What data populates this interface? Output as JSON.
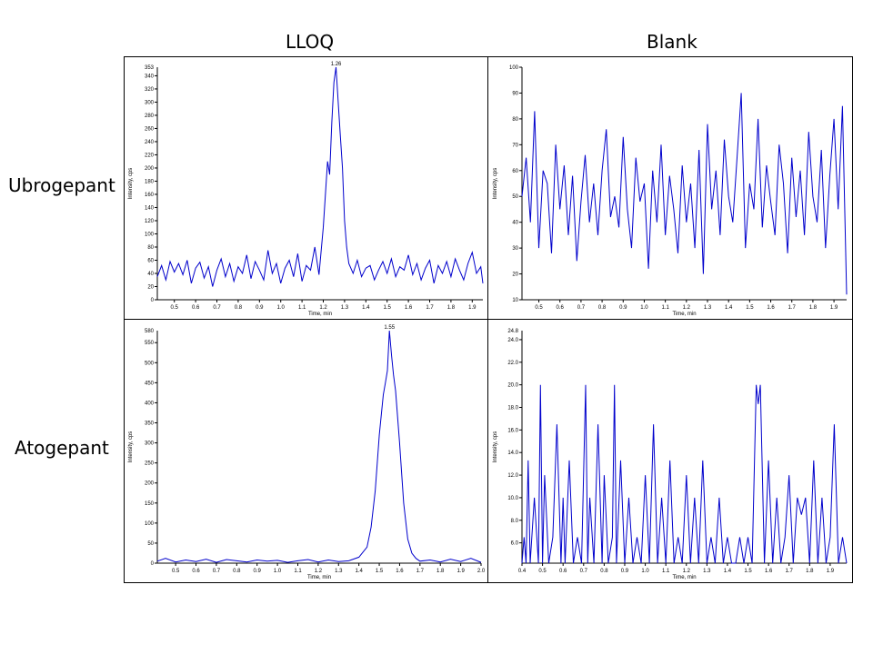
{
  "column_titles": [
    "LLOQ",
    "Blank"
  ],
  "row_titles": [
    "Ubrogepant",
    "Atogepant"
  ],
  "colors": {
    "trace": "#0000cc",
    "axis": "#000000",
    "frame": "#000000"
  },
  "chart_data": [
    {
      "type": "line",
      "panel": "Ubrogepant LLOQ",
      "xlabel": "Time, min",
      "ylabel": "Intensity, cps",
      "xlim": [
        0.42,
        1.95
      ],
      "ylim": [
        0,
        353
      ],
      "x_ticks": [
        "0.5",
        "0.6",
        "0.7",
        "0.8",
        "0.9",
        "1.0",
        "1.1",
        "1.2",
        "1.3",
        "1.4",
        "1.5",
        "1.6",
        "1.7",
        "1.8",
        "1.9"
      ],
      "y_ticks": [
        "0",
        "20",
        "40",
        "60",
        "80",
        "100",
        "120",
        "140",
        "160",
        "180",
        "200",
        "220",
        "240",
        "260",
        "280",
        "300",
        "320",
        "340"
      ],
      "y_top_label": "353",
      "peak": {
        "x": 1.26,
        "y": 353,
        "label": "1.26"
      },
      "series": [
        {
          "x": [
            0.42,
            0.44,
            0.46,
            0.48,
            0.5,
            0.52,
            0.54,
            0.56,
            0.58,
            0.6,
            0.62,
            0.64,
            0.66,
            0.68,
            0.7,
            0.72,
            0.74,
            0.76,
            0.78,
            0.8,
            0.82,
            0.84,
            0.86,
            0.88,
            0.9,
            0.92,
            0.94,
            0.96,
            0.98,
            1.0,
            1.02,
            1.04,
            1.06,
            1.08,
            1.1,
            1.12,
            1.14,
            1.16,
            1.18,
            1.2,
            1.22,
            1.23,
            1.24,
            1.25,
            1.26,
            1.27,
            1.28,
            1.29,
            1.3,
            1.31,
            1.32,
            1.34,
            1.36,
            1.38,
            1.4,
            1.42,
            1.44,
            1.46,
            1.48,
            1.5,
            1.52,
            1.54,
            1.56,
            1.58,
            1.6,
            1.62,
            1.64,
            1.66,
            1.68,
            1.7,
            1.72,
            1.74,
            1.76,
            1.78,
            1.8,
            1.82,
            1.84,
            1.86,
            1.88,
            1.9,
            1.92,
            1.94,
            1.95
          ],
          "y": [
            35,
            52,
            30,
            58,
            42,
            55,
            38,
            60,
            25,
            48,
            57,
            33,
            50,
            20,
            45,
            62,
            35,
            55,
            28,
            50,
            40,
            68,
            32,
            58,
            45,
            30,
            75,
            40,
            55,
            25,
            48,
            60,
            35,
            70,
            28,
            52,
            45,
            80,
            38,
            110,
            210,
            190,
            270,
            330,
            353,
            300,
            250,
            200,
            120,
            80,
            55,
            40,
            60,
            35,
            48,
            52,
            30,
            45,
            58,
            40,
            62,
            35,
            50,
            45,
            68,
            38,
            55,
            30,
            48,
            60,
            25,
            52,
            40,
            58,
            35,
            62,
            45,
            30,
            55,
            72,
            40,
            50,
            25
          ]
        }
      ]
    },
    {
      "type": "line",
      "panel": "Ubrogepant Blank",
      "xlabel": "Time, min",
      "ylabel": "Intensity, cps",
      "xlim": [
        0.42,
        1.96
      ],
      "ylim": [
        10,
        100
      ],
      "x_ticks": [
        "0.5",
        "0.6",
        "0.7",
        "0.8",
        "0.9",
        "1.0",
        "1.1",
        "1.2",
        "1.3",
        "1.4",
        "1.5",
        "1.6",
        "1.7",
        "1.8",
        "1.9"
      ],
      "y_ticks": [
        "10",
        "20",
        "30",
        "40",
        "50",
        "60",
        "70",
        "80",
        "90",
        "100"
      ],
      "series": [
        {
          "x": [
            0.42,
            0.44,
            0.46,
            0.48,
            0.5,
            0.52,
            0.54,
            0.56,
            0.58,
            0.6,
            0.62,
            0.64,
            0.66,
            0.68,
            0.7,
            0.72,
            0.74,
            0.76,
            0.78,
            0.8,
            0.82,
            0.84,
            0.86,
            0.88,
            0.9,
            0.92,
            0.94,
            0.96,
            0.98,
            1.0,
            1.02,
            1.04,
            1.06,
            1.08,
            1.1,
            1.12,
            1.14,
            1.16,
            1.18,
            1.2,
            1.22,
            1.24,
            1.26,
            1.28,
            1.3,
            1.32,
            1.34,
            1.36,
            1.38,
            1.4,
            1.42,
            1.44,
            1.46,
            1.48,
            1.5,
            1.52,
            1.54,
            1.56,
            1.58,
            1.6,
            1.62,
            1.64,
            1.66,
            1.68,
            1.7,
            1.72,
            1.74,
            1.76,
            1.78,
            1.8,
            1.82,
            1.84,
            1.86,
            1.88,
            1.9,
            1.92,
            1.94,
            1.96
          ],
          "y": [
            50,
            65,
            40,
            83,
            30,
            60,
            55,
            28,
            70,
            45,
            62,
            35,
            58,
            25,
            48,
            66,
            40,
            55,
            35,
            60,
            76,
            42,
            50,
            38,
            73,
            45,
            30,
            65,
            48,
            55,
            22,
            60,
            40,
            70,
            35,
            58,
            45,
            28,
            62,
            40,
            55,
            30,
            68,
            20,
            78,
            45,
            60,
            35,
            72,
            50,
            40,
            65,
            90,
            30,
            55,
            45,
            80,
            38,
            62,
            48,
            35,
            70,
            55,
            28,
            65,
            42,
            60,
            35,
            75,
            50,
            40,
            68,
            30,
            58,
            80,
            45,
            85,
            12
          ]
        }
      ]
    },
    {
      "type": "line",
      "panel": "Atogepant LLOQ",
      "xlabel": "Time, min",
      "ylabel": "Intensity, cps",
      "xlim": [
        0.41,
        2.0
      ],
      "ylim": [
        0,
        580
      ],
      "x_ticks": [
        "0.5",
        "0.6",
        "0.7",
        "0.8",
        "0.9",
        "1.0",
        "1.1",
        "1.2",
        "1.3",
        "1.4",
        "1.5",
        "1.6",
        "1.7",
        "1.8",
        "1.9",
        "2.0"
      ],
      "y_ticks": [
        "0",
        "50",
        "100",
        "150",
        "200",
        "250",
        "300",
        "350",
        "400",
        "450",
        "500",
        "550"
      ],
      "y_top_label": "580",
      "peak": {
        "x": 1.55,
        "y": 580,
        "label": "1.55"
      },
      "series": [
        {
          "x": [
            0.41,
            0.45,
            0.5,
            0.55,
            0.6,
            0.65,
            0.7,
            0.75,
            0.8,
            0.85,
            0.9,
            0.95,
            1.0,
            1.05,
            1.1,
            1.15,
            1.2,
            1.25,
            1.3,
            1.35,
            1.4,
            1.44,
            1.46,
            1.48,
            1.5,
            1.52,
            1.53,
            1.54,
            1.55,
            1.56,
            1.57,
            1.58,
            1.6,
            1.62,
            1.64,
            1.66,
            1.68,
            1.7,
            1.75,
            1.8,
            1.85,
            1.9,
            1.95,
            2.0
          ],
          "y": [
            5,
            12,
            3,
            8,
            4,
            10,
            2,
            9,
            6,
            3,
            8,
            5,
            7,
            2,
            6,
            9,
            3,
            8,
            4,
            6,
            15,
            40,
            90,
            180,
            320,
            420,
            450,
            480,
            580,
            520,
            470,
            430,
            300,
            150,
            60,
            25,
            12,
            5,
            8,
            3,
            10,
            4,
            12,
            2
          ]
        }
      ]
    },
    {
      "type": "line",
      "panel": "Atogepant Blank",
      "xlabel": "Time, min",
      "ylabel": "Intensity, cps",
      "xlim": [
        0.4,
        1.98
      ],
      "ylim": [
        4.2,
        24.8
      ],
      "x_ticks": [
        "0.4",
        "0.5",
        "0.6",
        "0.7",
        "0.8",
        "0.9",
        "1.0",
        "1.1",
        "1.2",
        "1.3",
        "1.4",
        "1.5",
        "1.6",
        "1.7",
        "1.8",
        "1.9"
      ],
      "y_ticks": [
        "6.0",
        "8.0",
        "10.0",
        "12.0",
        "14.0",
        "16.0",
        "18.0",
        "20.0",
        "22.0",
        "24.0"
      ],
      "y_top_label": "24.8",
      "series": [
        {
          "x": [
            0.4,
            0.41,
            0.42,
            0.43,
            0.44,
            0.46,
            0.48,
            0.49,
            0.5,
            0.51,
            0.53,
            0.55,
            0.57,
            0.59,
            0.6,
            0.61,
            0.63,
            0.65,
            0.67,
            0.69,
            0.71,
            0.72,
            0.73,
            0.75,
            0.77,
            0.79,
            0.8,
            0.82,
            0.84,
            0.85,
            0.86,
            0.88,
            0.9,
            0.92,
            0.94,
            0.96,
            0.98,
            1.0,
            1.02,
            1.04,
            1.06,
            1.08,
            1.1,
            1.12,
            1.14,
            1.16,
            1.18,
            1.2,
            1.22,
            1.24,
            1.26,
            1.28,
            1.3,
            1.32,
            1.34,
            1.36,
            1.38,
            1.4,
            1.42,
            1.44,
            1.46,
            1.48,
            1.5,
            1.52,
            1.54,
            1.55,
            1.56,
            1.58,
            1.6,
            1.62,
            1.64,
            1.66,
            1.68,
            1.7,
            1.72,
            1.74,
            1.76,
            1.78,
            1.8,
            1.82,
            1.84,
            1.86,
            1.88,
            1.9,
            1.92,
            1.94,
            1.96,
            1.98
          ],
          "y": [
            4.2,
            6.5,
            4.2,
            13.3,
            4.2,
            10.0,
            4.2,
            20.0,
            4.2,
            12.0,
            4.2,
            6.5,
            16.5,
            4.2,
            10.0,
            4.2,
            13.3,
            4.2,
            6.5,
            4.2,
            20.0,
            4.2,
            10.0,
            4.2,
            16.5,
            4.2,
            12.0,
            4.2,
            6.5,
            20.0,
            4.2,
            13.3,
            4.2,
            10.0,
            4.2,
            6.5,
            4.2,
            12.0,
            4.2,
            16.5,
            4.2,
            10.0,
            4.2,
            13.3,
            4.2,
            6.5,
            4.2,
            12.0,
            4.2,
            10.0,
            4.2,
            13.3,
            4.2,
            6.5,
            4.2,
            10.0,
            4.2,
            6.5,
            4.2,
            4.2,
            6.5,
            4.2,
            6.5,
            4.2,
            20.0,
            18.3,
            20.0,
            4.2,
            13.3,
            4.2,
            10.0,
            4.2,
            6.5,
            12.0,
            4.2,
            10.0,
            8.5,
            10.0,
            4.2,
            13.3,
            4.2,
            10.0,
            4.2,
            6.5,
            16.5,
            4.2,
            6.5,
            4.2
          ]
        }
      ]
    }
  ]
}
